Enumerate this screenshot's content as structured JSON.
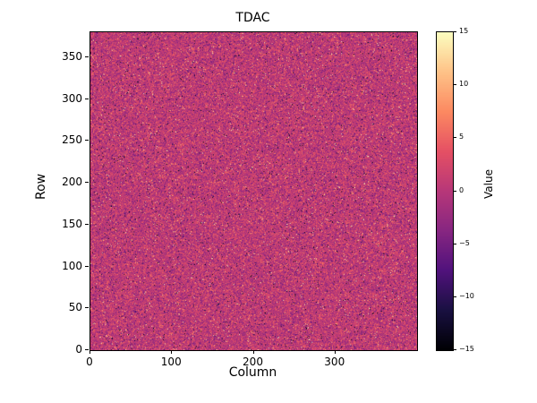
{
  "figure": {
    "background": "#ffffff",
    "kind": "matplotlib-style heatmap figure"
  },
  "chart_data": {
    "type": "heatmap",
    "title": "TDAC",
    "xlabel": "Column",
    "ylabel": "Row",
    "colorbar_label": "Value",
    "x_range": [
      0,
      400
    ],
    "y_range": [
      0,
      380
    ],
    "value_range": [
      -15,
      15
    ],
    "x_ticks": [
      0,
      100,
      200,
      300
    ],
    "y_ticks": [
      0,
      50,
      100,
      150,
      200,
      250,
      300,
      350
    ],
    "colorbar_ticks": [
      -15,
      -10,
      -5,
      0,
      5,
      10,
      15
    ],
    "grid_cols": 400,
    "grid_rows": 380,
    "colormap": "magma",
    "colormap_anchors": [
      {
        "t": 0.0,
        "rgb": [
          0,
          0,
          4
        ]
      },
      {
        "t": 0.125,
        "rgb": [
          26,
          16,
          66
        ]
      },
      {
        "t": 0.25,
        "rgb": [
          81,
          18,
          124
        ]
      },
      {
        "t": 0.375,
        "rgb": [
          135,
          38,
          129
        ]
      },
      {
        "t": 0.5,
        "rgb": [
          183,
          55,
          121
        ]
      },
      {
        "t": 0.625,
        "rgb": [
          229,
          80,
          100
        ]
      },
      {
        "t": 0.75,
        "rgb": [
          252,
          137,
          97
        ]
      },
      {
        "t": 0.875,
        "rgb": [
          254,
          194,
          135
        ]
      },
      {
        "t": 1.0,
        "rgb": [
          252,
          253,
          191
        ]
      }
    ],
    "data_summary": "Dense per-pixel random noise over a 400x380 grid; values centered near 0 (magenta/purple) with sparse bright (up to +15) and dark (down to -15) speckles",
    "noise_model": {
      "mean": 0.5,
      "std": 2.5,
      "speckle_fraction": 0.06,
      "seed": 42
    }
  }
}
